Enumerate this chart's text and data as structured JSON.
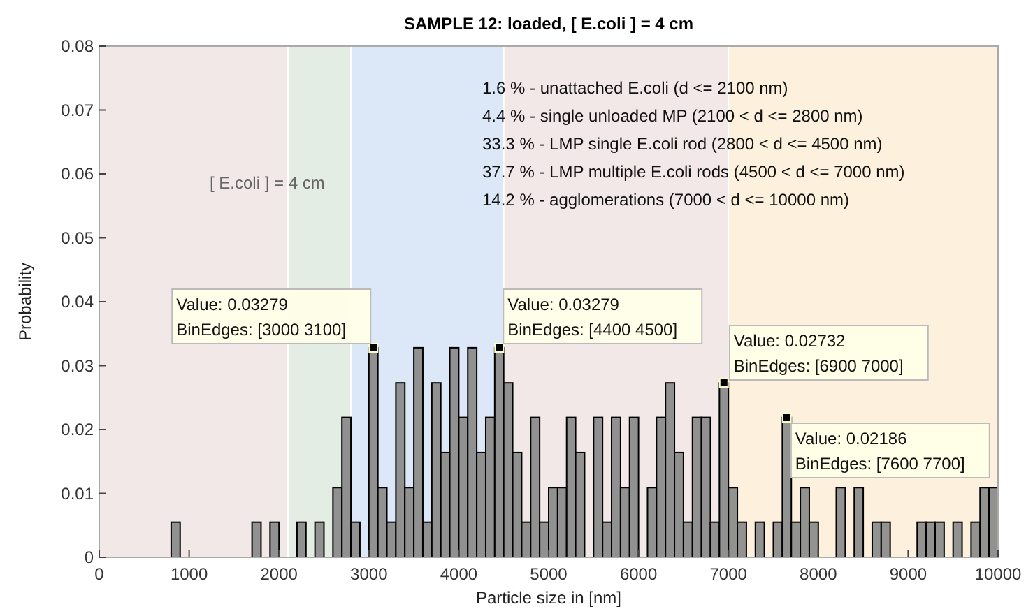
{
  "chart_data": {
    "type": "histogram",
    "title": "SAMPLE 12: loaded, [ E.coli ] = 4 cm",
    "xlabel": "Particle size in [nm]",
    "ylabel": "Probability",
    "bins": [
      0,
      100,
      200,
      300,
      400,
      500,
      600,
      700,
      800,
      900,
      1000,
      1100,
      1200,
      1300,
      1400,
      1500,
      1600,
      1700,
      1800,
      1900,
      2000,
      2100,
      2200,
      2300,
      2400,
      2500,
      2600,
      2700,
      2800,
      2900,
      3000,
      3100,
      3200,
      3300,
      3400,
      3500,
      3600,
      3700,
      3800,
      3900,
      4000,
      4100,
      4200,
      4300,
      4400,
      4500,
      4600,
      4700,
      4800,
      4900,
      5000,
      5100,
      5200,
      5300,
      5400,
      5500,
      5600,
      5700,
      5800,
      5900,
      6000,
      6100,
      6200,
      6300,
      6400,
      6500,
      6600,
      6700,
      6800,
      6900,
      7000,
      7100,
      7200,
      7300,
      7400,
      7500,
      7600,
      7700,
      7800,
      7900,
      8000,
      8100,
      8200,
      8300,
      8400,
      8500,
      8600,
      8700,
      8800,
      8900,
      9000,
      9100,
      9200,
      9300,
      9400,
      9500,
      9600,
      9700,
      9800,
      9900,
      10000
    ],
    "values": [
      0,
      0,
      0,
      0,
      0,
      0,
      0,
      0,
      0.0055,
      0,
      0,
      0,
      0,
      0,
      0,
      0,
      0,
      0.0055,
      0,
      0.0055,
      0,
      0,
      0.0055,
      0,
      0.0055,
      0,
      0.0109,
      0.0219,
      0.0055,
      0,
      0.0328,
      0.0109,
      0.0055,
      0.0273,
      0.0109,
      0.0328,
      0.0055,
      0.0273,
      0.0164,
      0.0328,
      0.0219,
      0.0328,
      0.0164,
      0.0219,
      0.0328,
      0.0273,
      0.0164,
      0.0055,
      0.0219,
      0.0055,
      0.0109,
      0.0109,
      0.0219,
      0.0164,
      0,
      0.0219,
      0.0055,
      0.0219,
      0.0109,
      0.0219,
      0,
      0.0109,
      0.0219,
      0.0273,
      0.0164,
      0.0055,
      0.0219,
      0.0219,
      0.0055,
      0.0273,
      0.0109,
      0.0055,
      0,
      0.0055,
      0,
      0.0055,
      0.0219,
      0.0055,
      0.0109,
      0.0055,
      0,
      0,
      0.0109,
      0,
      0.0109,
      0,
      0.0055,
      0.0055,
      0,
      0,
      0,
      0.0055,
      0.0055,
      0.0055,
      0,
      0.0055,
      0,
      0.0055,
      0.0109,
      0.0109
    ],
    "color": "#8c8c8c",
    "xlim": [
      0,
      10000
    ],
    "xticks": [
      0,
      1000,
      2000,
      3000,
      4000,
      5000,
      6000,
      7000,
      8000,
      9000,
      10000
    ],
    "ylim": [
      0,
      0.08
    ],
    "yticks": [
      0,
      0.01,
      0.02,
      0.03,
      0.04,
      0.05,
      0.06,
      0.07,
      0.08
    ],
    "grid": false,
    "bands": [
      {
        "axis": "x",
        "from": 0,
        "to": 2100,
        "color": "#f3e8e8"
      },
      {
        "axis": "x",
        "from": 2100,
        "to": 2800,
        "color": "#e3ede3"
      },
      {
        "axis": "x",
        "from": 2800,
        "to": 4500,
        "color": "#dce8f8"
      },
      {
        "axis": "x",
        "from": 4500,
        "to": 7000,
        "color": "#f3e8e8"
      },
      {
        "axis": "x",
        "from": 7000,
        "to": 10000,
        "color": "#fdf0dd"
      }
    ],
    "annotations": [
      "1.6 % - unattached E.coli (d <= 2100 nm)",
      "4.4 % - single unloaded MP (2100 < d <= 2800 nm)",
      "33.3 % - LMP single E.coli rod (2800 < d <= 4500 nm)",
      "37.7 % - LMP multiple E.coli rods (4500 < d <= 7000 nm)",
      "14.2 % - agglomerations (7000 < d <= 10000 nm)",
      "[ E.coli ] = 4 cm",
      {
        "text": "Value: 0.03279\nBinEdges: [3000 3100]",
        "x": 3050,
        "y": 0.03279
      },
      {
        "text": "Value: 0.03279\nBinEdges: [4400 4500]",
        "x": 4450,
        "y": 0.03279
      },
      {
        "text": "Value: 0.02732\nBinEdges: [6900 7000]",
        "x": 6950,
        "y": 0.02732
      },
      {
        "text": "Value: 0.02186\nBinEdges: [7600 7700]",
        "x": 7650,
        "y": 0.02186
      }
    ]
  }
}
